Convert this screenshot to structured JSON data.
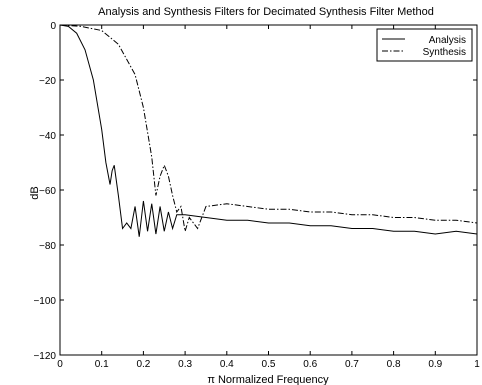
{
  "chart_data": {
    "type": "line",
    "title": "Analysis and Synthesis Filters for Decimated Synthesis Filter Method",
    "xlabel": "π Normalized Frequency",
    "ylabel": "dB",
    "xlim": [
      0,
      1
    ],
    "ylim": [
      -120,
      0
    ],
    "xticks": [
      0,
      0.1,
      0.2,
      0.3,
      0.4,
      0.5,
      0.6,
      0.7,
      0.8,
      0.9,
      1
    ],
    "xtick_labels": [
      "0",
      "0.1",
      "0.2",
      "0.3",
      "0.4",
      "0.5",
      "0.6",
      "0.7",
      "0.8",
      "0.9",
      "1"
    ],
    "yticks": [
      0,
      -20,
      -40,
      -60,
      -80,
      -100,
      -120
    ],
    "ytick_labels": [
      "0",
      "−20",
      "−40",
      "−60",
      "−80",
      "−100",
      "−120"
    ],
    "grid": false,
    "legend_position": "top-right",
    "series": [
      {
        "name": "Analysis",
        "style": "solid",
        "color": "#000000",
        "x": [
          0,
          0.02,
          0.04,
          0.06,
          0.08,
          0.1,
          0.11,
          0.12,
          0.125,
          0.13,
          0.14,
          0.15,
          0.16,
          0.17,
          0.18,
          0.19,
          0.2,
          0.21,
          0.22,
          0.23,
          0.24,
          0.25,
          0.26,
          0.27,
          0.28,
          0.3,
          0.35,
          0.4,
          0.45,
          0.5,
          0.55,
          0.6,
          0.65,
          0.7,
          0.75,
          0.8,
          0.85,
          0.9,
          0.95,
          1.0
        ],
        "y": [
          0,
          -0.5,
          -3,
          -9,
          -20,
          -38,
          -50,
          -58,
          -53,
          -51,
          -62,
          -74,
          -72,
          -74,
          -66,
          -77,
          -64,
          -75,
          -65,
          -76,
          -66,
          -75,
          -68,
          -74,
          -69,
          -69,
          -70,
          -71,
          -71,
          -72,
          -72,
          -73,
          -73,
          -74,
          -74,
          -75,
          -75,
          -76,
          -75,
          -76
        ]
      },
      {
        "name": "Synthesis",
        "style": "dashdot",
        "color": "#000000",
        "x": [
          0,
          0.05,
          0.1,
          0.14,
          0.18,
          0.2,
          0.22,
          0.23,
          0.24,
          0.25,
          0.26,
          0.27,
          0.28,
          0.29,
          0.3,
          0.31,
          0.33,
          0.35,
          0.4,
          0.45,
          0.5,
          0.55,
          0.6,
          0.65,
          0.7,
          0.75,
          0.8,
          0.85,
          0.9,
          0.95,
          1.0
        ],
        "y": [
          0,
          -0.5,
          -2,
          -7,
          -18,
          -30,
          -48,
          -62,
          -55,
          -51,
          -55,
          -62,
          -68,
          -66,
          -75,
          -70,
          -74,
          -66,
          -65,
          -66,
          -67,
          -67,
          -68,
          -68,
          -69,
          -69,
          -70,
          -70,
          -71,
          -71,
          -72
        ]
      }
    ]
  }
}
